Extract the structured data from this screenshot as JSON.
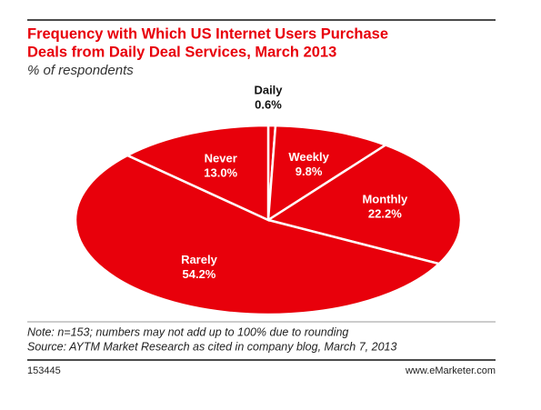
{
  "chart_data": {
    "type": "pie",
    "title": [
      "Frequency with Which US Internet Users Purchase",
      "Deals from Daily Deal Services, March 2013"
    ],
    "subtitle": "% of respondents",
    "categories": [
      "Daily",
      "Weekly",
      "Monthly",
      "Rarely",
      "Never"
    ],
    "values": [
      0.6,
      9.8,
      22.2,
      54.2,
      13.0
    ],
    "value_labels": [
      "0.6%",
      "9.8%",
      "22.2%",
      "54.2%",
      "13.0%"
    ],
    "color": "#e8000b",
    "note": "Note: n=153; numbers may not add up to 100% due to rounding",
    "source": "Source: AYTM Market Research as cited in company blog, March 7, 2013",
    "chart_id": "153445",
    "brand": "www.eMarketer.com"
  }
}
